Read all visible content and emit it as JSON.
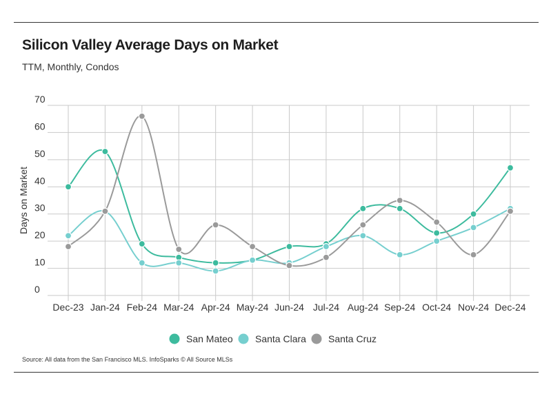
{
  "header": {
    "title": "Silicon Valley Average Days on Market",
    "subtitle": "TTM, Monthly, Condos"
  },
  "footer": {
    "source": "Source:  All data from the San Francisco MLS. InfoSparks © All Source MLSs"
  },
  "chart_data": {
    "type": "line",
    "title": "Silicon Valley Average Days on Market",
    "subtitle": "TTM, Monthly, Condos",
    "xlabel": "",
    "ylabel": "Days on Market",
    "ylim": [
      0,
      70
    ],
    "yticks": [
      0,
      10,
      20,
      30,
      40,
      50,
      60,
      70
    ],
    "grid": true,
    "legend_position": "bottom",
    "smooth": true,
    "categories": [
      "Dec-23",
      "Jan-24",
      "Feb-24",
      "Mar-24",
      "Apr-24",
      "May-24",
      "Jun-24",
      "Jul-24",
      "Aug-24",
      "Sep-24",
      "Oct-24",
      "Nov-24",
      "Dec-24"
    ],
    "series": [
      {
        "name": "San Mateo",
        "color": "#3dbb9e",
        "values": [
          40,
          53,
          19,
          14,
          12,
          13,
          18,
          19,
          32,
          32,
          23,
          30,
          47
        ]
      },
      {
        "name": "Santa Clara",
        "color": "#76cfcf",
        "values": [
          22,
          31,
          12,
          12,
          9,
          13,
          12,
          18,
          22,
          15,
          20,
          25,
          32
        ]
      },
      {
        "name": "Santa Cruz",
        "color": "#9a9a9a",
        "values": [
          18,
          31,
          66,
          17,
          26,
          18,
          11,
          14,
          26,
          35,
          27,
          15,
          31
        ]
      }
    ]
  }
}
